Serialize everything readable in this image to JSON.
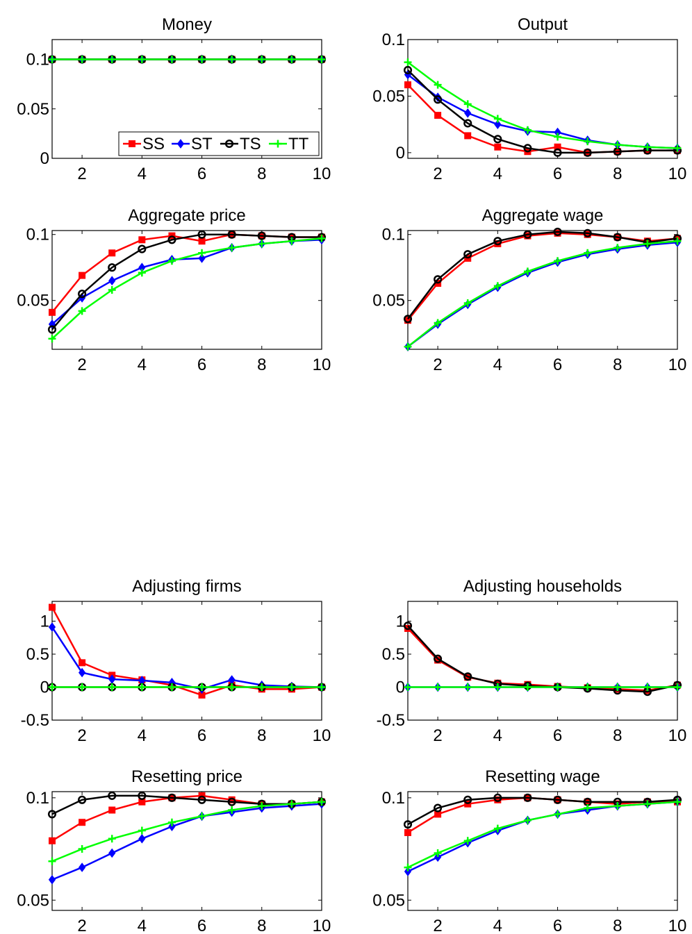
{
  "figure": {
    "background": "#ffffff"
  },
  "series_styles": [
    {
      "name": "SS",
      "color": "#ff0000",
      "marker": "square"
    },
    {
      "name": "ST",
      "color": "#0000ff",
      "marker": "diamond"
    },
    {
      "name": "TS",
      "color": "#000000",
      "marker": "circle"
    },
    {
      "name": "TT",
      "color": "#00ff00",
      "marker": "plus"
    }
  ],
  "chart_data": [
    {
      "type": "line",
      "title": "Money",
      "x": [
        1,
        2,
        3,
        4,
        5,
        6,
        7,
        8,
        9,
        10
      ],
      "xlim": [
        1,
        10
      ],
      "xticks": [
        2,
        4,
        6,
        8,
        10
      ],
      "xtick_labels": [
        "2",
        "4",
        "6",
        "8",
        "10"
      ],
      "ylim": [
        0,
        0.12
      ],
      "yticks": [
        0,
        0.05,
        0.1
      ],
      "ytick_labels": [
        "0",
        "0.05",
        "0.1"
      ],
      "legend": {
        "position": "bottom-right",
        "orientation": "horizontal",
        "entries": [
          "SS",
          "ST",
          "TS",
          "TT"
        ]
      },
      "series": [
        {
          "name": "SS",
          "values": [
            0.1,
            0.1,
            0.1,
            0.1,
            0.1,
            0.1,
            0.1,
            0.1,
            0.1,
            0.1
          ]
        },
        {
          "name": "ST",
          "values": [
            0.1,
            0.1,
            0.1,
            0.1,
            0.1,
            0.1,
            0.1,
            0.1,
            0.1,
            0.1
          ]
        },
        {
          "name": "TS",
          "values": [
            0.1,
            0.1,
            0.1,
            0.1,
            0.1,
            0.1,
            0.1,
            0.1,
            0.1,
            0.1
          ]
        },
        {
          "name": "TT",
          "values": [
            0.1,
            0.1,
            0.1,
            0.1,
            0.1,
            0.1,
            0.1,
            0.1,
            0.1,
            0.1
          ]
        }
      ]
    },
    {
      "type": "line",
      "title": "Output",
      "x": [
        1,
        2,
        3,
        4,
        5,
        6,
        7,
        8,
        9,
        10
      ],
      "xlim": [
        1,
        10
      ],
      "xticks": [
        2,
        4,
        6,
        8,
        10
      ],
      "xtick_labels": [
        "2",
        "4",
        "6",
        "8",
        "10"
      ],
      "ylim": [
        -0.005,
        0.1
      ],
      "yticks": [
        0,
        0.05,
        0.1
      ],
      "ytick_labels": [
        "0",
        "0.05",
        "0.1"
      ],
      "series": [
        {
          "name": "SS",
          "values": [
            0.06,
            0.033,
            0.015,
            0.005,
            0.001,
            0.005,
            0.0,
            0.001,
            0.002,
            0.002
          ]
        },
        {
          "name": "ST",
          "values": [
            0.069,
            0.049,
            0.035,
            0.025,
            0.019,
            0.018,
            0.011,
            0.007,
            0.005,
            0.004
          ]
        },
        {
          "name": "TS",
          "values": [
            0.073,
            0.047,
            0.026,
            0.012,
            0.004,
            0.0,
            0.0,
            0.001,
            0.002,
            0.002
          ]
        },
        {
          "name": "TT",
          "values": [
            0.08,
            0.06,
            0.043,
            0.03,
            0.02,
            0.014,
            0.01,
            0.007,
            0.005,
            0.004
          ]
        }
      ]
    },
    {
      "type": "line",
      "title": "Aggregate price",
      "x": [
        1,
        2,
        3,
        4,
        5,
        6,
        7,
        8,
        9,
        10
      ],
      "xlim": [
        1,
        10
      ],
      "xticks": [
        2,
        4,
        6,
        8,
        10
      ],
      "xtick_labels": [
        "2",
        "4",
        "6",
        "8",
        "10"
      ],
      "ylim": [
        0.013,
        0.103
      ],
      "yticks": [
        0.05,
        0.1
      ],
      "ytick_labels": [
        "0.05",
        "0.1"
      ],
      "series": [
        {
          "name": "SS",
          "values": [
            0.041,
            0.069,
            0.086,
            0.096,
            0.099,
            0.095,
            0.1,
            0.099,
            0.098,
            0.098
          ]
        },
        {
          "name": "ST",
          "values": [
            0.032,
            0.052,
            0.065,
            0.075,
            0.081,
            0.082,
            0.09,
            0.093,
            0.095,
            0.096
          ]
        },
        {
          "name": "TS",
          "values": [
            0.028,
            0.055,
            0.075,
            0.089,
            0.096,
            0.1,
            0.1,
            0.099,
            0.098,
            0.098
          ]
        },
        {
          "name": "TT",
          "values": [
            0.021,
            0.042,
            0.058,
            0.071,
            0.08,
            0.086,
            0.09,
            0.093,
            0.095,
            0.097
          ]
        }
      ]
    },
    {
      "type": "line",
      "title": "Aggregate wage",
      "x": [
        1,
        2,
        3,
        4,
        5,
        6,
        7,
        8,
        9,
        10
      ],
      "xlim": [
        1,
        10
      ],
      "xticks": [
        2,
        4,
        6,
        8,
        10
      ],
      "xtick_labels": [
        "2",
        "4",
        "6",
        "8",
        "10"
      ],
      "ylim": [
        0.013,
        0.103
      ],
      "yticks": [
        0.05,
        0.1
      ],
      "ytick_labels": [
        "0.05",
        "0.1"
      ],
      "series": [
        {
          "name": "SS",
          "values": [
            0.035,
            0.063,
            0.082,
            0.093,
            0.099,
            0.101,
            0.1,
            0.098,
            0.095,
            0.097
          ]
        },
        {
          "name": "ST",
          "values": [
            0.015,
            0.032,
            0.047,
            0.06,
            0.071,
            0.079,
            0.085,
            0.089,
            0.092,
            0.094
          ]
        },
        {
          "name": "TS",
          "values": [
            0.036,
            0.066,
            0.085,
            0.095,
            0.1,
            0.102,
            0.101,
            0.098,
            0.094,
            0.097
          ]
        },
        {
          "name": "TT",
          "values": [
            0.015,
            0.033,
            0.048,
            0.061,
            0.072,
            0.08,
            0.086,
            0.09,
            0.093,
            0.095
          ]
        }
      ]
    },
    {
      "type": "line",
      "title": "Adjusting firms",
      "x": [
        1,
        2,
        3,
        4,
        5,
        6,
        7,
        8,
        9,
        10
      ],
      "xlim": [
        1,
        10
      ],
      "xticks": [
        2,
        4,
        6,
        8,
        10
      ],
      "xtick_labels": [
        "2",
        "4",
        "6",
        "8",
        "10"
      ],
      "ylim": [
        -0.5,
        1.3
      ],
      "yticks": [
        -0.5,
        0,
        0.5,
        1
      ],
      "ytick_labels": [
        "-0.5",
        "0",
        "0.5",
        "1"
      ],
      "series": [
        {
          "name": "SS",
          "values": [
            1.21,
            0.37,
            0.18,
            0.11,
            0.03,
            -0.12,
            0.03,
            -0.03,
            -0.03,
            0.0
          ]
        },
        {
          "name": "ST",
          "values": [
            0.91,
            0.22,
            0.12,
            0.1,
            0.07,
            -0.03,
            0.11,
            0.03,
            0.01,
            0.0
          ]
        },
        {
          "name": "TS",
          "values": [
            0,
            0,
            0,
            0,
            0,
            0,
            0,
            0,
            0,
            0
          ]
        },
        {
          "name": "TT",
          "values": [
            0,
            0,
            0,
            0,
            0,
            0,
            0,
            0,
            0,
            0
          ]
        }
      ]
    },
    {
      "type": "line",
      "title": "Adjusting households",
      "x": [
        1,
        2,
        3,
        4,
        5,
        6,
        7,
        8,
        9,
        10
      ],
      "xlim": [
        1,
        10
      ],
      "xticks": [
        2,
        4,
        6,
        8,
        10
      ],
      "xtick_labels": [
        "2",
        "4",
        "6",
        "8",
        "10"
      ],
      "ylim": [
        -0.5,
        1.3
      ],
      "yticks": [
        -0.5,
        0,
        0.5,
        1
      ],
      "ytick_labels": [
        "-0.5",
        "0",
        "0.5",
        "1"
      ],
      "series": [
        {
          "name": "SS",
          "values": [
            0.89,
            0.41,
            0.15,
            0.06,
            0.04,
            0.01,
            -0.01,
            -0.03,
            -0.05,
            0.03
          ]
        },
        {
          "name": "ST",
          "values": [
            0,
            0,
            0,
            0,
            0,
            0,
            0,
            0,
            0,
            0
          ]
        },
        {
          "name": "TS",
          "values": [
            0.93,
            0.43,
            0.16,
            0.05,
            0.02,
            0.0,
            -0.02,
            -0.05,
            -0.07,
            0.03
          ]
        },
        {
          "name": "TT",
          "values": [
            0,
            0,
            0,
            0,
            0,
            0,
            0,
            0,
            0,
            0
          ]
        }
      ]
    },
    {
      "type": "line",
      "title": "Resetting price",
      "x": [
        1,
        2,
        3,
        4,
        5,
        6,
        7,
        8,
        9,
        10
      ],
      "xlim": [
        1,
        10
      ],
      "xticks": [
        2,
        4,
        6,
        8,
        10
      ],
      "xtick_labels": [
        "2",
        "4",
        "6",
        "8",
        "10"
      ],
      "ylim": [
        0.045,
        0.103
      ],
      "yticks": [
        0.05,
        0.1
      ],
      "ytick_labels": [
        "0.05",
        "0.1"
      ],
      "series": [
        {
          "name": "SS",
          "values": [
            0.079,
            0.088,
            0.094,
            0.098,
            0.1,
            0.101,
            0.099,
            0.097,
            0.097,
            0.098
          ]
        },
        {
          "name": "ST",
          "values": [
            0.06,
            0.066,
            0.073,
            0.08,
            0.086,
            0.091,
            0.093,
            0.095,
            0.096,
            0.097
          ]
        },
        {
          "name": "TS",
          "values": [
            0.092,
            0.099,
            0.101,
            0.101,
            0.1,
            0.099,
            0.098,
            0.097,
            0.097,
            0.098
          ]
        },
        {
          "name": "TT",
          "values": [
            0.069,
            0.075,
            0.08,
            0.084,
            0.088,
            0.091,
            0.094,
            0.096,
            0.097,
            0.098
          ]
        }
      ]
    },
    {
      "type": "line",
      "title": "Resetting wage",
      "x": [
        1,
        2,
        3,
        4,
        5,
        6,
        7,
        8,
        9,
        10
      ],
      "xlim": [
        1,
        10
      ],
      "xticks": [
        2,
        4,
        6,
        8,
        10
      ],
      "xtick_labels": [
        "2",
        "4",
        "6",
        "8",
        "10"
      ],
      "ylim": [
        0.045,
        0.103
      ],
      "yticks": [
        0.05,
        0.1
      ],
      "ytick_labels": [
        "0.05",
        "0.1"
      ],
      "series": [
        {
          "name": "SS",
          "values": [
            0.083,
            0.092,
            0.097,
            0.099,
            0.1,
            0.099,
            0.098,
            0.097,
            0.098,
            0.098
          ]
        },
        {
          "name": "ST",
          "values": [
            0.064,
            0.071,
            0.078,
            0.084,
            0.089,
            0.092,
            0.094,
            0.096,
            0.097,
            0.098
          ]
        },
        {
          "name": "TS",
          "values": [
            0.087,
            0.095,
            0.099,
            0.1,
            0.1,
            0.099,
            0.098,
            0.098,
            0.098,
            0.099
          ]
        },
        {
          "name": "TT",
          "values": [
            0.066,
            0.073,
            0.079,
            0.085,
            0.089,
            0.092,
            0.095,
            0.096,
            0.097,
            0.098
          ]
        }
      ]
    }
  ]
}
